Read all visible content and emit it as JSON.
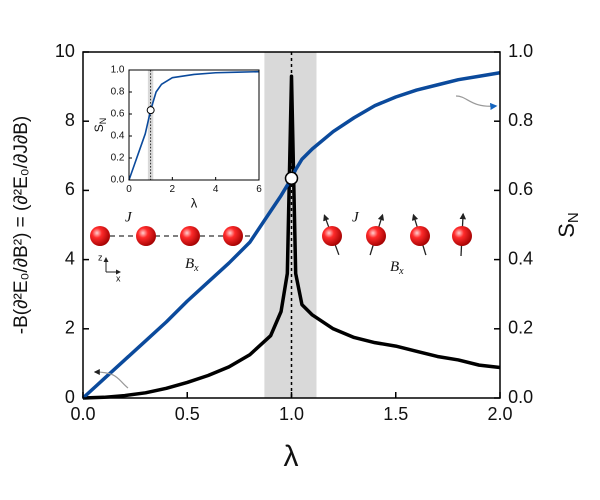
{
  "chart_data": [
    {
      "type": "line",
      "xlabel": "λ",
      "ylabel": "-B(∂²E₀/∂B²) = (∂²E₀/∂J∂B)",
      "y2label": "S",
      "y2label_subscript": "N",
      "x": [
        0,
        0.1,
        0.2,
        0.3,
        0.4,
        0.5,
        0.6,
        0.7,
        0.8,
        0.9,
        0.95,
        0.98,
        1.0,
        1.02,
        1.05,
        1.1,
        1.2,
        1.3,
        1.4,
        1.5,
        1.6,
        1.7,
        1.8,
        1.9,
        2.0
      ],
      "series": [
        {
          "color": "#000000",
          "values": [
            0,
            0.02,
            0.07,
            0.15,
            0.28,
            0.45,
            0.65,
            0.9,
            1.25,
            1.8,
            2.5,
            3.6,
            9.3,
            3.6,
            2.7,
            2.4,
            2.0,
            1.75,
            1.6,
            1.5,
            1.35,
            1.2,
            1.1,
            0.95,
            0.88
          ]
        },
        {
          "color": "#0b4a9c",
          "axis": "y2",
          "values": [
            0,
            0.055,
            0.11,
            0.165,
            0.22,
            0.28,
            0.335,
            0.39,
            0.45,
            0.54,
            0.585,
            0.615,
            0.635,
            0.66,
            0.69,
            0.72,
            0.77,
            0.81,
            0.845,
            0.87,
            0.89,
            0.905,
            0.92,
            0.93,
            0.94
          ]
        }
      ],
      "xlim": [
        0,
        2
      ],
      "xticks": [
        {
          "value": 0,
          "label": "0.0"
        },
        {
          "value": 0.5,
          "label": "0.5"
        },
        {
          "value": 1,
          "label": "1.0"
        },
        {
          "value": 1.5,
          "label": "1.5"
        },
        {
          "value": 2,
          "label": "2.0"
        }
      ],
      "ylim": [
        0,
        10
      ],
      "yticks": [
        0,
        2,
        4,
        6,
        8,
        10
      ],
      "y2lim": [
        0,
        1
      ],
      "y2ticks": [
        {
          "value": 0,
          "label": "0.0"
        },
        {
          "value": 0.2,
          "label": "0.2"
        },
        {
          "value": 0.4,
          "label": "0.4"
        },
        {
          "value": 0.6,
          "label": "0.6"
        },
        {
          "value": 0.8,
          "label": "0.8"
        },
        {
          "value": 1,
          "label": "1.0"
        }
      ],
      "shaded_region": [
        0.87,
        1.12
      ],
      "critical_line": 1,
      "highlight_point": {
        "x": 1,
        "y": 0.635
      },
      "spin_labels": {
        "coupling": "J",
        "field": "B",
        "field_subscript": "x",
        "axis_z": "z",
        "axis_x": "x"
      }
    },
    {
      "type": "line",
      "xlabel": "λ",
      "ylabel": "S",
      "ylabel_subscript": "N",
      "x": [
        0,
        0.25,
        0.5,
        0.75,
        1,
        1.25,
        1.5,
        2,
        3,
        4,
        5,
        6
      ],
      "series": [
        {
          "color": "#0b4a9c",
          "values": [
            0,
            0.14,
            0.28,
            0.42,
            0.635,
            0.8,
            0.87,
            0.93,
            0.96,
            0.975,
            0.98,
            0.985
          ]
        }
      ],
      "xlim": [
        0,
        6
      ],
      "xticks": [
        0,
        2,
        4,
        6
      ],
      "ylim": [
        0,
        1
      ],
      "yticks": [
        {
          "value": 0,
          "label": "0.0"
        },
        {
          "value": 0.2,
          "label": "0.2"
        },
        {
          "value": 0.4,
          "label": "0.4"
        },
        {
          "value": 0.6,
          "label": "0.6"
        },
        {
          "value": 0.8,
          "label": "0.8"
        },
        {
          "value": 1,
          "label": "1.0"
        }
      ],
      "shaded_region": [
        0.87,
        1.12
      ],
      "critical_line": 1,
      "highlight_point": {
        "x": 1,
        "y": 0.635
      }
    }
  ]
}
